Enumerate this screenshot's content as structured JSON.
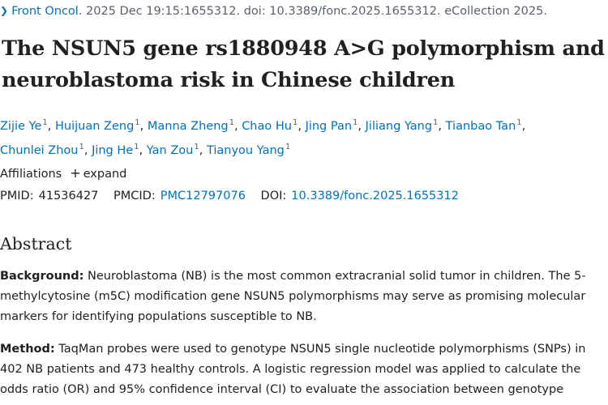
{
  "citation": {
    "journal": "Front Oncol.",
    "details": "2025 Dec 19:15:1655312. doi: 10.3389/fonc.2025.1655312. eCollection 2025."
  },
  "title": "The NSUN5 gene rs1880948 A>G polymorphism and neuroblastoma risk in Chinese children",
  "authors": [
    {
      "name": "Zijie Ye",
      "aff": "1"
    },
    {
      "name": "Huijuan Zeng",
      "aff": "1"
    },
    {
      "name": "Manna Zheng",
      "aff": "1"
    },
    {
      "name": "Chao Hu",
      "aff": "1"
    },
    {
      "name": "Jing Pan",
      "aff": "1"
    },
    {
      "name": "Jiliang Yang",
      "aff": "1"
    },
    {
      "name": "Tianbao Tan",
      "aff": "1"
    },
    {
      "name": "Chunlei Zhou",
      "aff": "1"
    },
    {
      "name": "Jing He",
      "aff": "1"
    },
    {
      "name": "Yan Zou",
      "aff": "1"
    },
    {
      "name": "Tianyou Yang",
      "aff": "1"
    }
  ],
  "affiliations": {
    "label": "Affiliations",
    "expand": "expand"
  },
  "ids": {
    "pmid_label": "PMID:",
    "pmid": "41536427",
    "pmcid_label": "PMCID:",
    "pmcid": "PMC12797076",
    "doi_label": "DOI:",
    "doi": "10.3389/fonc.2025.1655312"
  },
  "abstract": {
    "heading": "Abstract",
    "background_label": "Background:",
    "background_text": "Neuroblastoma (NB) is the most common extracranial solid tumor in children. The 5-methylcytosine (m5C) modification gene NSUN5 polymorphisms may serve as promising molecular markers for identifying populations susceptible to NB.",
    "method_label": "Method:",
    "method_text": "TaqMan probes were used to genotype NSUN5 single nucleotide polymorphisms (SNPs) in 402 NB patients and 473 healthy controls. A logistic regression model was applied to calculate the odds ratio (OR) and 95% confidence interval (CI) to evaluate the association between genotype"
  }
}
